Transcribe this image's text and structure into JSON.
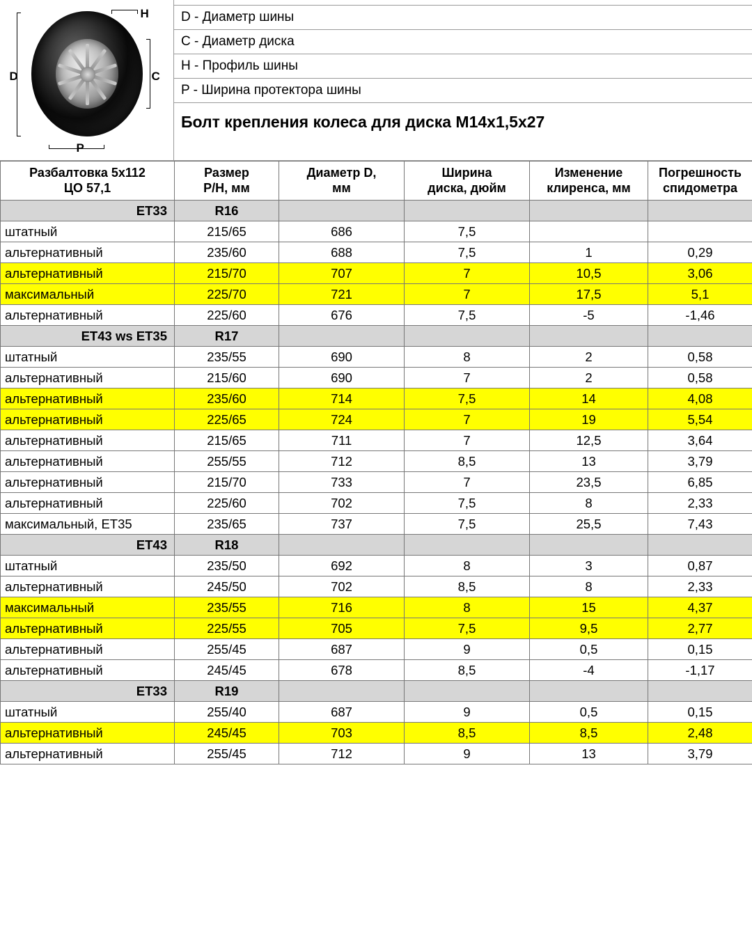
{
  "legend": {
    "D": "D - Диаметр шины",
    "C": "C - Диаметр диска",
    "H": "H - Профиль шины",
    "P": "P - Ширина протектора шины"
  },
  "dim_labels": {
    "D": "D",
    "C": "C",
    "H": "H",
    "P": "P"
  },
  "title": "Болт крепления колеса для диска M14x1,5x27",
  "header": {
    "name_l1": "Разбалтовка 5x112",
    "name_l2": "ЦО 57,1",
    "size_l1": "Размер",
    "size_l2": "P/H, мм",
    "diam_l1": "Диаметр D,",
    "diam_l2": "мм",
    "width_l1": "Ширина",
    "width_l2": "диска, дюйм",
    "clear_l1": "Изменение",
    "clear_l2": "клиренса, мм",
    "speed_l1": "Погрешность",
    "speed_l2": "спидометра"
  },
  "colors": {
    "section_bg": "#d6d6d6",
    "highlight_bg": "#ffff00",
    "border": "#777777",
    "text": "#000000"
  },
  "sections": [
    {
      "et": "ET33",
      "rim": "R16",
      "rows": [
        {
          "hl": false,
          "name": "штатный",
          "size": "215/65",
          "diam": "686",
          "width": "7,5",
          "clear": "",
          "speed": ""
        },
        {
          "hl": false,
          "name": "альтернативный",
          "size": "235/60",
          "diam": "688",
          "width": "7,5",
          "clear": "1",
          "speed": "0,29"
        },
        {
          "hl": true,
          "name": "альтернативный",
          "size": "215/70",
          "diam": "707",
          "width": "7",
          "clear": "10,5",
          "speed": "3,06"
        },
        {
          "hl": true,
          "name": "максимальный",
          "size": "225/70",
          "diam": "721",
          "width": "7",
          "clear": "17,5",
          "speed": "5,1"
        },
        {
          "hl": false,
          "name": "альтернативный",
          "size": "225/60",
          "diam": "676",
          "width": "7,5",
          "clear": "-5",
          "speed": "-1,46"
        }
      ]
    },
    {
      "et": "ET43 ws ET35",
      "rim": "R17",
      "rows": [
        {
          "hl": false,
          "name": "штатный",
          "size": "235/55",
          "diam": "690",
          "width": "8",
          "clear": "2",
          "speed": "0,58"
        },
        {
          "hl": false,
          "name": "альтернативный",
          "size": "215/60",
          "diam": "690",
          "width": "7",
          "clear": "2",
          "speed": "0,58"
        },
        {
          "hl": true,
          "name": "альтернативный",
          "size": "235/60",
          "diam": "714",
          "width": "7,5",
          "clear": "14",
          "speed": "4,08"
        },
        {
          "hl": true,
          "name": "альтернативный",
          "size": "225/65",
          "diam": "724",
          "width": "7",
          "clear": "19",
          "speed": "5,54"
        },
        {
          "hl": false,
          "name": "альтернативный",
          "size": "215/65",
          "diam": "711",
          "width": "7",
          "clear": "12,5",
          "speed": "3,64"
        },
        {
          "hl": false,
          "name": "альтернативный",
          "size": "255/55",
          "diam": "712",
          "width": "8,5",
          "clear": "13",
          "speed": "3,79"
        },
        {
          "hl": false,
          "name": "альтернативный",
          "size": "215/70",
          "diam": "733",
          "width": "7",
          "clear": "23,5",
          "speed": "6,85"
        },
        {
          "hl": false,
          "name": "альтернативный",
          "size": "225/60",
          "diam": "702",
          "width": "7,5",
          "clear": "8",
          "speed": "2,33"
        },
        {
          "hl": false,
          "name": "максимальный, ET35",
          "size": "235/65",
          "diam": "737",
          "width": "7,5",
          "clear": "25,5",
          "speed": "7,43"
        }
      ]
    },
    {
      "et": "ET43",
      "rim": "R18",
      "rows": [
        {
          "hl": false,
          "name": "штатный",
          "size": "235/50",
          "diam": "692",
          "width": "8",
          "clear": "3",
          "speed": "0,87"
        },
        {
          "hl": false,
          "name": "альтернативный",
          "size": "245/50",
          "diam": "702",
          "width": "8,5",
          "clear": "8",
          "speed": "2,33"
        },
        {
          "hl": true,
          "name": "максимальный",
          "size": "235/55",
          "diam": "716",
          "width": "8",
          "clear": "15",
          "speed": "4,37"
        },
        {
          "hl": true,
          "name": "альтернативный",
          "size": "225/55",
          "diam": "705",
          "width": "7,5",
          "clear": "9,5",
          "speed": "2,77"
        },
        {
          "hl": false,
          "name": "альтернативный",
          "size": "255/45",
          "diam": "687",
          "width": "9",
          "clear": "0,5",
          "speed": "0,15"
        },
        {
          "hl": false,
          "name": "альтернативный",
          "size": "245/45",
          "diam": "678",
          "width": "8,5",
          "clear": "-4",
          "speed": "-1,17"
        }
      ]
    },
    {
      "et": "ET33",
      "rim": "R19",
      "rows": [
        {
          "hl": false,
          "name": "штатный",
          "size": "255/40",
          "diam": "687",
          "width": "9",
          "clear": "0,5",
          "speed": "0,15"
        },
        {
          "hl": true,
          "name": "альтернативный",
          "size": "245/45",
          "diam": "703",
          "width": "8,5",
          "clear": "8,5",
          "speed": "2,48"
        },
        {
          "hl": false,
          "name": "альтернативный",
          "size": "255/45",
          "diam": "712",
          "width": "9",
          "clear": "13",
          "speed": "3,79"
        }
      ]
    }
  ]
}
